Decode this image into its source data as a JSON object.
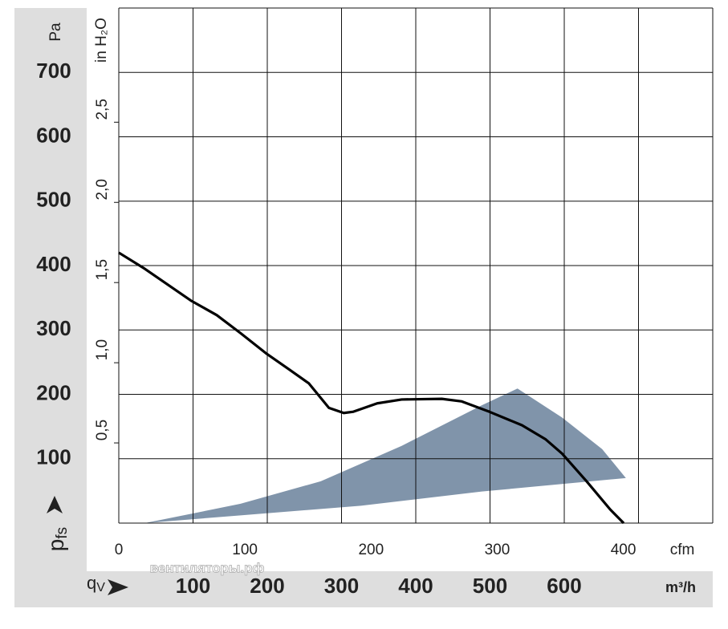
{
  "chart_data": {
    "type": "line",
    "y_unit": "Pa",
    "y2_unit": "in H₂O",
    "y_symbol": {
      "main": "p",
      "sub": "fs"
    },
    "x_symbol": {
      "main": "q",
      "sub": "V"
    },
    "x_unit": "m³/h",
    "x2_unit": "cfm",
    "watermark": "вентиляторы.рф",
    "xlim": [
      0,
      800
    ],
    "xticks": [
      100,
      200,
      300,
      400,
      500,
      600
    ],
    "xgrid": [
      0,
      100,
      200,
      300,
      400,
      500,
      600,
      700,
      800
    ],
    "x2lim": [
      0,
      470.9
    ],
    "x2ticks": [
      0,
      100,
      200,
      300,
      400
    ],
    "ylim": [
      0,
      800
    ],
    "yticks": [
      100,
      200,
      300,
      400,
      500,
      600,
      700
    ],
    "ygrid": [
      0,
      100,
      200,
      300,
      400,
      500,
      600,
      700,
      800
    ],
    "y2lim": [
      0,
      3.212
    ],
    "y2ticks": [
      {
        "value": 0.5,
        "label": "0,5"
      },
      {
        "value": 1.0,
        "label": "1,0"
      },
      {
        "value": 1.5,
        "label": "1,5"
      },
      {
        "value": 2.0,
        "label": "2,0"
      },
      {
        "value": 2.5,
        "label": "2,5"
      }
    ],
    "grid": true,
    "region": {
      "color": "#8094aa",
      "x": [
        35,
        164,
        326,
        489,
        683,
        651,
        597,
        537,
        489,
        381,
        272,
        164
      ],
      "y": [
        0,
        12,
        27,
        49,
        70,
        115,
        164,
        209,
        183,
        120,
        65,
        30
      ]
    },
    "series": [
      {
        "color": "#000000",
        "x": [
          0,
          35,
          98,
          132,
          164,
          198,
          229,
          256,
          283,
          303,
          316,
          348,
          381,
          435,
          462,
          499,
          543,
          575,
          597,
          630,
          662,
          680
        ],
        "values": [
          420,
          395,
          345,
          323,
          295,
          264,
          239,
          217,
          179,
          171,
          173,
          186,
          192,
          193,
          189,
          173,
          152,
          130,
          108,
          65,
          21,
          0
        ]
      }
    ]
  }
}
